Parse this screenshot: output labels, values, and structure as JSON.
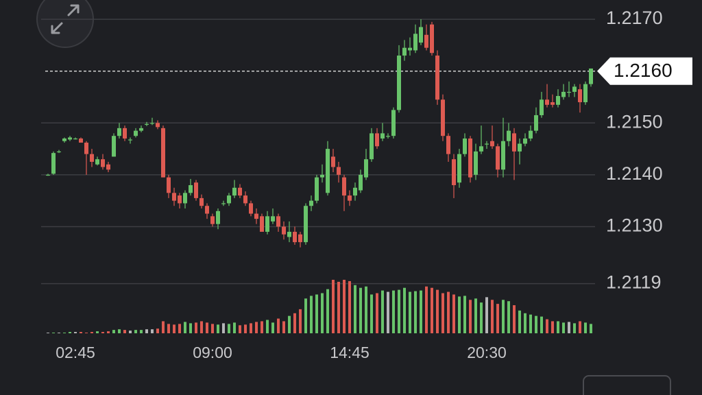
{
  "chart_data": {
    "type": "candlestick",
    "up_color": "#69c46b",
    "down_color": "#de5b52",
    "flat_color": "#b5b5b8",
    "ylim": [
      1.2119,
      1.2172
    ],
    "yticks": [
      {
        "value": 1.217,
        "label": "1.2170"
      },
      {
        "value": 1.215,
        "label": "1.2150"
      },
      {
        "value": 1.214,
        "label": "1.2140"
      },
      {
        "value": 1.213,
        "label": "1.2130"
      },
      {
        "value": 1.2119,
        "label": "1.2119"
      }
    ],
    "last_price": {
      "value": 1.216,
      "label": "1.2160"
    },
    "grid": true,
    "volume_ylim": [
      0,
      80
    ],
    "categories": [
      null,
      null,
      null,
      null,
      null,
      "02:45",
      null,
      null,
      null,
      null,
      null,
      null,
      null,
      null,
      null,
      null,
      null,
      null,
      null,
      null,
      null,
      null,
      null,
      null,
      null,
      null,
      null,
      null,
      null,
      null,
      "09:00",
      null,
      null,
      null,
      null,
      null,
      null,
      null,
      null,
      null,
      null,
      null,
      null,
      null,
      null,
      null,
      null,
      null,
      null,
      null,
      null,
      null,
      null,
      null,
      null,
      "14:45",
      null,
      null,
      null,
      null,
      null,
      null,
      null,
      null,
      null,
      null,
      null,
      null,
      null,
      null,
      null,
      null,
      null,
      null,
      null,
      null,
      null,
      null,
      null,
      null,
      "20:30",
      null,
      null,
      null,
      null,
      null,
      null,
      null,
      null,
      null,
      null,
      null,
      null,
      null,
      null,
      null,
      null,
      null,
      null,
      null
    ],
    "ohlc": [
      [
        1.214,
        1.21402,
        1.21398,
        1.214
      ],
      [
        1.21402,
        1.21445,
        1.214,
        1.21442
      ],
      [
        1.21445,
        1.21448,
        1.21442,
        1.21445
      ],
      [
        1.21465,
        1.21472,
        1.21462,
        1.2147
      ],
      [
        1.21468,
        1.21475,
        1.21465,
        1.21472
      ],
      [
        1.2147,
        1.21472,
        1.21468,
        1.2147
      ],
      [
        1.2147,
        1.21472,
        1.21462,
        1.21462
      ],
      [
        1.21462,
        1.21465,
        1.214,
        1.2144
      ],
      [
        1.2144,
        1.2145,
        1.21415,
        1.21425
      ],
      [
        1.2142,
        1.21435,
        1.21418,
        1.2143
      ],
      [
        1.2143,
        1.2144,
        1.2141,
        1.21415
      ],
      [
        1.2142,
        1.21425,
        1.21405,
        1.2141
      ],
      [
        1.21435,
        1.2148,
        1.21435,
        1.21475
      ],
      [
        1.21475,
        1.215,
        1.2147,
        1.2149
      ],
      [
        1.2149,
        1.21495,
        1.21465,
        1.2147
      ],
      [
        1.21468,
        1.21472,
        1.2146,
        1.21468
      ],
      [
        1.21475,
        1.2149,
        1.21472,
        1.21485
      ],
      [
        1.21485,
        1.21495,
        1.21482,
        1.2149
      ],
      [
        1.21498,
        1.21502,
        1.21494,
        1.21498
      ],
      [
        1.215,
        1.2151,
        1.21496,
        1.215
      ],
      [
        1.215,
        1.21505,
        1.21488,
        1.21492
      ],
      [
        1.2149,
        1.21495,
        1.21395,
        1.21395
      ],
      [
        1.21395,
        1.214,
        1.21355,
        1.21365
      ],
      [
        1.21365,
        1.21375,
        1.2134,
        1.2135
      ],
      [
        1.2136,
        1.21365,
        1.21335,
        1.21345
      ],
      [
        1.21345,
        1.2137,
        1.21335,
        1.21365
      ],
      [
        1.21365,
        1.21392,
        1.2136,
        1.2138
      ],
      [
        1.21385,
        1.2139,
        1.2135,
        1.21355
      ],
      [
        1.21355,
        1.21362,
        1.21335,
        1.2134
      ],
      [
        1.2134,
        1.21345,
        1.21315,
        1.21325
      ],
      [
        1.2132,
        1.21325,
        1.213,
        1.21305
      ],
      [
        1.21305,
        1.21335,
        1.21295,
        1.2133
      ],
      [
        1.21345,
        1.2135,
        1.2134,
        1.21345
      ],
      [
        1.21345,
        1.21365,
        1.2134,
        1.2136
      ],
      [
        1.2136,
        1.2139,
        1.21355,
        1.21375
      ],
      [
        1.21375,
        1.21382,
        1.21355,
        1.2136
      ],
      [
        1.2136,
        1.21368,
        1.2134,
        1.21345
      ],
      [
        1.21345,
        1.2135,
        1.2132,
        1.21325
      ],
      [
        1.21325,
        1.21335,
        1.21305,
        1.21315
      ],
      [
        1.2132,
        1.21325,
        1.2129,
        1.2129
      ],
      [
        1.2129,
        1.2133,
        1.21285,
        1.2132
      ],
      [
        1.2131,
        1.21335,
        1.21305,
        1.2132
      ],
      [
        1.2132,
        1.21325,
        1.2129,
        1.213
      ],
      [
        1.213,
        1.2131,
        1.21275,
        1.21285
      ],
      [
        1.2128,
        1.2131,
        1.2127,
        1.2129
      ],
      [
        1.2129,
        1.213,
        1.21265,
        1.2127
      ],
      [
        1.21285,
        1.2129,
        1.2126,
        1.2127
      ],
      [
        1.2127,
        1.21345,
        1.21265,
        1.2134
      ],
      [
        1.2134,
        1.2136,
        1.2133,
        1.2135
      ],
      [
        1.2135,
        1.214,
        1.21345,
        1.21395
      ],
      [
        1.21395,
        1.2142,
        1.21385,
        1.214
      ],
      [
        1.21365,
        1.21465,
        1.2136,
        1.2145
      ],
      [
        1.21435,
        1.2145,
        1.21405,
        1.21415
      ],
      [
        1.21415,
        1.21425,
        1.21385,
        1.214
      ],
      [
        1.21395,
        1.214,
        1.2133,
        1.2136
      ],
      [
        1.2136,
        1.2137,
        1.2134,
        1.2135
      ],
      [
        1.2136,
        1.21385,
        1.2135,
        1.21375
      ],
      [
        1.2137,
        1.2141,
        1.21365,
        1.214
      ],
      [
        1.21395,
        1.2145,
        1.2139,
        1.2143
      ],
      [
        1.2143,
        1.2149,
        1.21425,
        1.2148
      ],
      [
        1.2148,
        1.2149,
        1.2145,
        1.21455
      ],
      [
        1.2147,
        1.215,
        1.21465,
        1.2148
      ],
      [
        1.21475,
        1.2148,
        1.2147,
        1.21475
      ],
      [
        1.21475,
        1.2153,
        1.2147,
        1.21525
      ],
      [
        1.21525,
        1.2165,
        1.2152,
        1.2163
      ],
      [
        1.2163,
        1.2166,
        1.2162,
        1.21645
      ],
      [
        1.2164,
        1.21665,
        1.2163,
        1.21645
      ],
      [
        1.2164,
        1.2169,
        1.21635,
        1.21672
      ],
      [
        1.21655,
        1.217,
        1.2165,
        1.21685
      ],
      [
        1.2167,
        1.2169,
        1.2164,
        1.21645
      ],
      [
        1.2169,
        1.21695,
        1.2163,
        1.21635
      ],
      [
        1.2163,
        1.2164,
        1.21535,
        1.21545
      ],
      [
        1.21545,
        1.21555,
        1.21465,
        1.21475
      ],
      [
        1.21475,
        1.2148,
        1.21425,
        1.2144
      ],
      [
        1.2143,
        1.2144,
        1.21355,
        1.2138
      ],
      [
        1.21385,
        1.2145,
        1.21375,
        1.2144
      ],
      [
        1.2144,
        1.2148,
        1.21435,
        1.2147
      ],
      [
        1.2147,
        1.21475,
        1.21385,
        1.21395
      ],
      [
        1.214,
        1.2146,
        1.2139,
        1.21445
      ],
      [
        1.21445,
        1.21495,
        1.2144,
        1.21455
      ],
      [
        1.2146,
        1.21465,
        1.2145,
        1.2146
      ],
      [
        1.21465,
        1.21495,
        1.2145,
        1.21455
      ],
      [
        1.21455,
        1.2146,
        1.21395,
        1.2141
      ],
      [
        1.2141,
        1.2151,
        1.21395,
        1.21465
      ],
      [
        1.21465,
        1.215,
        1.21455,
        1.21485
      ],
      [
        1.2148,
        1.2149,
        1.2139,
        1.21445
      ],
      [
        1.21445,
        1.2147,
        1.2142,
        1.2146
      ],
      [
        1.2146,
        1.2148,
        1.21455,
        1.2147
      ],
      [
        1.2147,
        1.21495,
        1.21465,
        1.21485
      ],
      [
        1.21485,
        1.2153,
        1.2148,
        1.21515
      ],
      [
        1.21515,
        1.2156,
        1.2151,
        1.21545
      ],
      [
        1.21545,
        1.21575,
        1.2153,
        1.21535
      ],
      [
        1.2154,
        1.21555,
        1.2153,
        1.21535
      ],
      [
        1.21535,
        1.21565,
        1.2153,
        1.21552
      ],
      [
        1.2155,
        1.21575,
        1.21545,
        1.2156
      ],
      [
        1.2156,
        1.2158,
        1.2155,
        1.2156
      ],
      [
        1.2156,
        1.21575,
        1.2155,
        1.2157
      ],
      [
        1.21565,
        1.21575,
        1.2152,
        1.2154
      ],
      [
        1.2154,
        1.2158,
        1.21535,
        1.21575
      ],
      [
        1.21575,
        1.21605,
        1.2157,
        1.21605
      ]
    ],
    "volume": [
      1,
      1,
      1,
      1,
      2,
      2,
      2,
      1,
      2,
      3,
      2,
      3,
      5,
      6,
      5,
      4,
      5,
      5,
      6,
      6,
      7,
      18,
      14,
      13,
      14,
      17,
      15,
      16,
      18,
      16,
      14,
      13,
      15,
      14,
      16,
      12,
      13,
      15,
      17,
      18,
      20,
      16,
      22,
      18,
      26,
      30,
      36,
      52,
      56,
      58,
      60,
      66,
      80,
      77,
      80,
      78,
      72,
      68,
      70,
      58,
      60,
      64,
      62,
      64,
      65,
      68,
      62,
      63,
      64,
      70,
      68,
      65,
      60,
      62,
      58,
      55,
      56,
      50,
      52,
      46,
      54,
      50,
      44,
      50,
      48,
      42,
      34,
      30,
      28,
      26,
      25,
      21,
      18,
      18,
      16,
      17,
      15,
      18,
      16,
      14
    ]
  }
}
